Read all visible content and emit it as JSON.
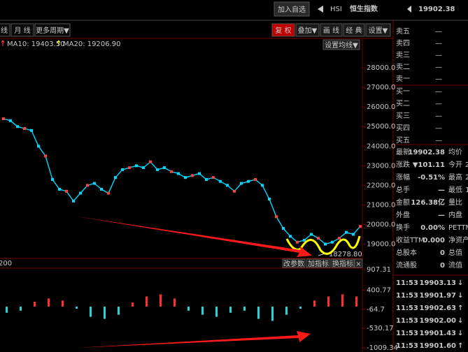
{
  "header": {
    "add_button": "加入自选",
    "symbol": "HSI",
    "name": "恒生指数",
    "price": "19902.38"
  },
  "toolbar": {
    "left": [
      "线",
      "月 线",
      "更多周期▼"
    ],
    "right": [
      "复 权",
      "叠加▼",
      "画 线",
      "经 典",
      "设置▼"
    ]
  },
  "price_chart": {
    "legend": [
      "MA10: 19403.50",
      "MA20: 19206.90"
    ],
    "settings_button": "设置均线▼",
    "ylim": [
      18270,
      29500
    ],
    "yticks": [
      {
        "value": 28000,
        "label": "28000.0"
      },
      {
        "value": 27000,
        "label": "27000.0"
      },
      {
        "value": 26000,
        "label": "26000.0"
      },
      {
        "value": 25000,
        "label": "25000.0"
      },
      {
        "value": 24000,
        "label": "24000.0"
      },
      {
        "value": 23000,
        "label": "23000.0"
      },
      {
        "value": 22000,
        "label": "22000.0"
      },
      {
        "value": 21000,
        "label": "21000.0"
      },
      {
        "value": 20000,
        "label": "20000.0"
      },
      {
        "value": 19000,
        "label": "19000.0"
      }
    ],
    "low_label": "18278.80",
    "closes": [
      25400,
      25300,
      25000,
      24900,
      24800,
      24000,
      23500,
      22300,
      21800,
      21700,
      21200,
      21600,
      22000,
      22100,
      21800,
      21600,
      22400,
      22800,
      22900,
      23000,
      22900,
      23200,
      22800,
      22900,
      22700,
      22600,
      22400,
      22500,
      22600,
      22300,
      22400,
      22200,
      22000,
      21700,
      22100,
      22200,
      22300,
      22000,
      21300,
      20400,
      19800,
      19400,
      19100,
      19200,
      19500,
      19300,
      19000,
      19100,
      19300,
      19600,
      19500,
      19902.38
    ]
  },
  "indicator_buttons": [
    "改参数",
    "加指标",
    "换指标",
    "×"
  ],
  "macd": {
    "param": "200",
    "ylim": [
      -1009.34,
      907.31
    ],
    "yticks": [
      907.31,
      400.77,
      -64.7,
      -530.17,
      -1009.34
    ],
    "histogram": [
      -150,
      -100,
      120,
      200,
      150,
      -50,
      -250,
      -300,
      -200,
      100,
      250,
      300,
      200,
      -100,
      -200,
      -250,
      -150,
      -100,
      -300,
      -350,
      -200,
      -50,
      150,
      250,
      300,
      250
    ]
  },
  "order_book": {
    "asks": [
      "卖五",
      "卖四",
      "卖三",
      "卖二",
      "卖一"
    ],
    "bids": [
      "买一",
      "买二",
      "买三",
      "买四",
      "买五"
    ],
    "empty": "—"
  },
  "quote": [
    [
      "最新",
      "19902.38",
      "均价"
    ],
    [
      "涨跌",
      "▼101.11",
      "今开",
      "2"
    ],
    [
      "涨幅",
      "-0.51%",
      "最高",
      "2"
    ],
    [
      "总手",
      "—",
      "最低",
      "1"
    ],
    [
      "金额",
      "126.38亿",
      "量比"
    ],
    [
      "外盘",
      "—",
      "内盘"
    ],
    [
      "换手",
      "0.00%",
      "PETTM"
    ],
    [
      "收益TTM",
      "0.000",
      "净资产"
    ],
    [
      "总股本",
      "0",
      "总值"
    ],
    [
      "流通股",
      "0",
      "流值"
    ]
  ],
  "trades": [
    {
      "time": "11:53",
      "price": "19903.13",
      "dir": "↓"
    },
    {
      "time": "11:53",
      "price": "19901.97",
      "dir": "↓"
    },
    {
      "time": "11:53",
      "price": "19902.63",
      "dir": "↑"
    },
    {
      "time": "11:53",
      "price": "19902.00",
      "dir": "↓"
    },
    {
      "time": "11:53",
      "price": "19901.43",
      "dir": "↓"
    },
    {
      "time": "11:53",
      "price": "19901.60",
      "dir": "↑"
    }
  ]
}
